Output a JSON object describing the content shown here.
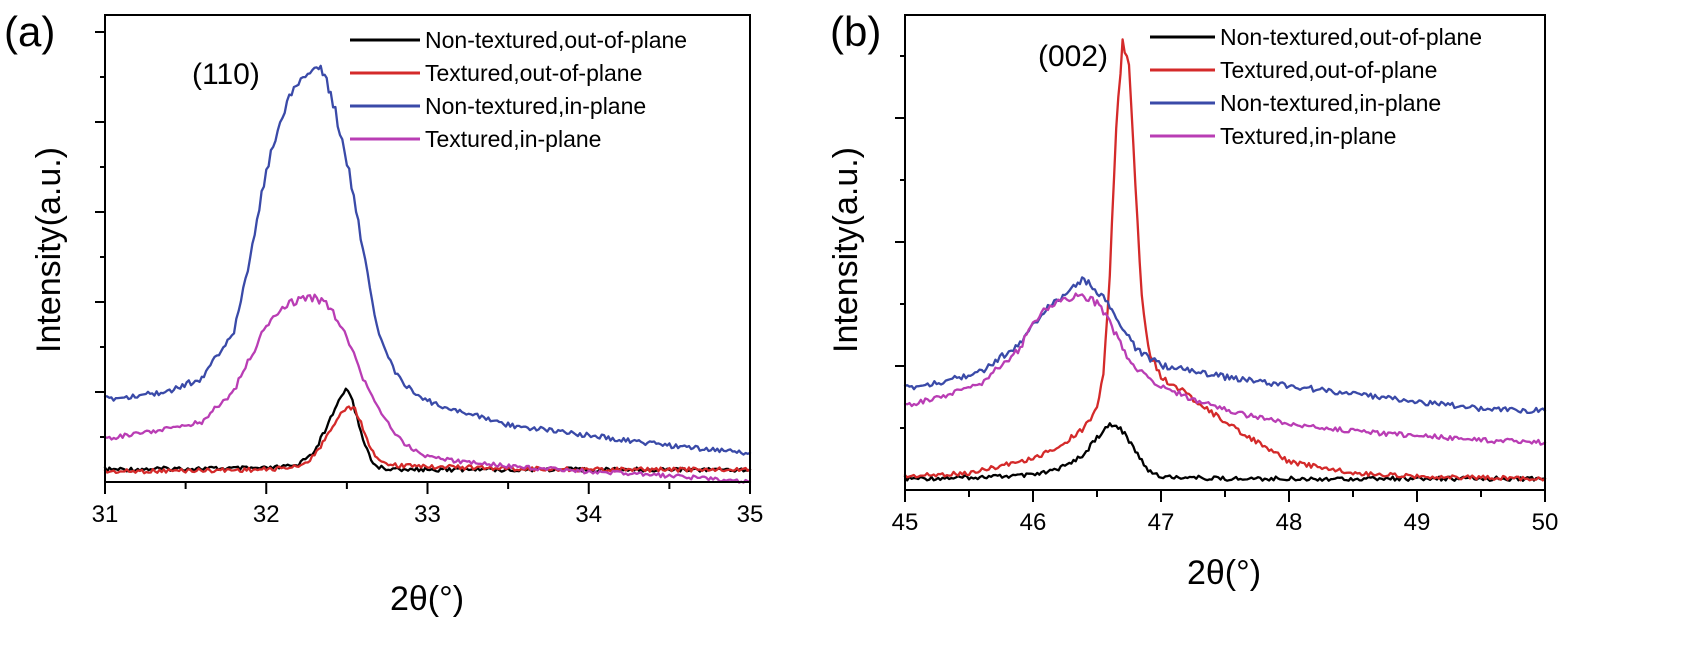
{
  "chart_data": [
    {
      "type": "line",
      "panel_label": "(a)",
      "annotation": "(110)",
      "xlabel": "2θ(°)",
      "ylabel": "Intensity(a.u.)",
      "xlim": [
        31,
        35
      ],
      "ylim": [
        0,
        450
      ],
      "xticks": [
        "31",
        "32",
        "33",
        "34",
        "35"
      ],
      "grid": false,
      "legend_position": "top-right",
      "series": [
        {
          "name": "Non-textured,out-of-plane",
          "color": "#000000",
          "x": [
            31.0,
            31.5,
            32.0,
            32.2,
            32.3,
            32.35,
            32.4,
            32.45,
            32.48,
            32.52,
            32.55,
            32.6,
            32.65,
            32.7,
            32.8,
            33.0,
            33.5,
            34.0,
            34.5,
            35.0
          ],
          "y": [
            12,
            13,
            13,
            16,
            30,
            45,
            62,
            78,
            88,
            86,
            70,
            42,
            22,
            14,
            12,
            12,
            12,
            12,
            12,
            12
          ]
        },
        {
          "name": "Textured,out-of-plane",
          "color": "#d42a2a",
          "x": [
            31.0,
            31.5,
            32.0,
            32.2,
            32.3,
            32.35,
            32.4,
            32.45,
            32.5,
            32.55,
            32.6,
            32.65,
            32.7,
            32.8,
            33.0,
            33.5,
            34.0,
            34.5,
            35.0
          ],
          "y": [
            10,
            11,
            12,
            15,
            25,
            38,
            52,
            63,
            72,
            70,
            52,
            32,
            20,
            16,
            15,
            13,
            12,
            12,
            12
          ]
        },
        {
          "name": "Non-textured,in-plane",
          "color": "#3a4aa8",
          "x": [
            31.0,
            31.2,
            31.4,
            31.6,
            31.8,
            31.9,
            32.0,
            32.1,
            32.2,
            32.3,
            32.35,
            32.4,
            32.5,
            32.6,
            32.7,
            32.8,
            32.9,
            33.0,
            33.2,
            33.5,
            34.0,
            34.5,
            35.0
          ],
          "y": [
            80,
            83,
            88,
            100,
            145,
            215,
            300,
            355,
            385,
            405,
            395,
            375,
            310,
            225,
            140,
            105,
            88,
            78,
            68,
            55,
            45,
            35,
            28
          ]
        },
        {
          "name": "Textured,in-plane",
          "color": "#b93db4",
          "x": [
            31.0,
            31.3,
            31.6,
            31.8,
            31.9,
            32.0,
            32.1,
            32.2,
            32.3,
            32.4,
            32.5,
            32.6,
            32.7,
            32.8,
            32.9,
            33.0,
            33.3,
            33.6,
            34.0,
            34.5,
            35.0
          ],
          "y": [
            42,
            48,
            58,
            88,
            120,
            150,
            170,
            175,
            178,
            168,
            140,
            100,
            70,
            45,
            32,
            24,
            18,
            14,
            10,
            6,
            0
          ]
        }
      ]
    },
    {
      "type": "line",
      "panel_label": "(b)",
      "annotation": "(002)",
      "xlabel": "2θ(°)",
      "ylabel": "Intensity(a.u.)",
      "xlim": [
        45,
        50
      ],
      "ylim": [
        0,
        420
      ],
      "xticks": [
        "45",
        "46",
        "47",
        "48",
        "49",
        "50"
      ],
      "grid": false,
      "legend_position": "top-right",
      "series": [
        {
          "name": "Non-textured,out-of-plane",
          "color": "#000000",
          "x": [
            45.0,
            45.5,
            46.0,
            46.2,
            46.4,
            46.5,
            46.6,
            46.65,
            46.7,
            46.8,
            46.9,
            47.0,
            47.5,
            48.0,
            49.0,
            50.0
          ],
          "y": [
            10,
            11,
            13,
            18,
            32,
            46,
            58,
            56,
            52,
            35,
            18,
            12,
            10,
            10,
            10,
            10
          ]
        },
        {
          "name": "Textured,out-of-plane",
          "color": "#d42a2a",
          "x": [
            45.0,
            45.5,
            46.0,
            46.2,
            46.4,
            46.5,
            46.55,
            46.6,
            46.65,
            46.7,
            46.75,
            46.8,
            46.85,
            46.9,
            47.0,
            47.2,
            47.5,
            48.0,
            48.5,
            49.0,
            50.0
          ],
          "y": [
            12,
            15,
            28,
            38,
            55,
            72,
            105,
            190,
            320,
            395,
            380,
            270,
            170,
            125,
            100,
            85,
            60,
            25,
            15,
            12,
            10
          ]
        },
        {
          "name": "Non-textured,in-plane",
          "color": "#3a4aa8",
          "x": [
            45.0,
            45.3,
            45.6,
            45.9,
            46.1,
            46.3,
            46.4,
            46.5,
            46.6,
            46.7,
            46.8,
            47.0,
            47.5,
            48.0,
            48.5,
            49.0,
            49.5,
            50.0
          ],
          "y": [
            90,
            96,
            105,
            130,
            160,
            178,
            186,
            176,
            162,
            145,
            125,
            110,
            100,
            92,
            85,
            78,
            72,
            70
          ]
        },
        {
          "name": "Textured,in-plane",
          "color": "#b93db4",
          "x": [
            45.0,
            45.3,
            45.6,
            45.9,
            46.0,
            46.2,
            46.4,
            46.5,
            46.6,
            46.7,
            46.8,
            47.0,
            47.3,
            47.6,
            48.0,
            48.5,
            49.0,
            49.5,
            50.0
          ],
          "y": [
            75,
            82,
            95,
            125,
            150,
            168,
            172,
            165,
            148,
            125,
            108,
            92,
            78,
            68,
            58,
            52,
            48,
            44,
            42
          ]
        }
      ]
    }
  ]
}
